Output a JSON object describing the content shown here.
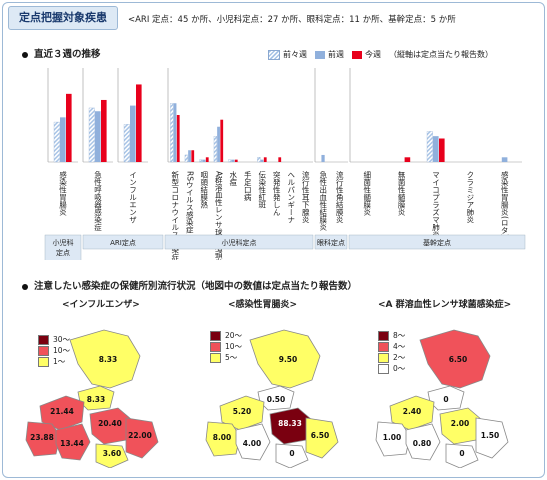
{
  "header": {
    "title": "定点把握対象疾患",
    "subhead": "<ARI 定点：45 か所、小児科定点：27 か所、眼科定点：11 か所、基幹定点：5 か所"
  },
  "bar_section": {
    "title": "直近３週の推移",
    "legend_note": "（縦軸は定点当たり報告数）"
  },
  "map_section": {
    "title": "注意したい感染症の保健所別流行状況（地図中の数値は定点当たり報告数）"
  },
  "colors": {
    "week_before_last": "#a8c4e6",
    "last_week": "#90b0dc",
    "this_week": "#e8001c",
    "level_high": "#7a0010",
    "level_mid": "#f0525a",
    "level_low": "#ffff66",
    "level_zero": "#ffffff"
  },
  "chart_data": {
    "type": "bar",
    "series": [
      {
        "name": "前々週",
        "values": [
          8.5,
          11.5,
          8.0,
          2.5,
          0.3,
          0.1,
          1.1,
          0.1,
          0.0,
          0.2,
          0.0,
          0.0,
          0.0,
          0.0,
          0.0,
          0.0,
          0.0,
          1.3,
          0.0,
          0.0
        ]
      },
      {
        "name": "前週",
        "values": [
          9.5,
          10.8,
          12.0,
          2.5,
          0.5,
          0.1,
          1.5,
          0.1,
          0.0,
          0.1,
          0.0,
          0.0,
          0.0,
          0.3,
          0.0,
          0.0,
          0.0,
          1.1,
          0.0,
          0.2
        ]
      },
      {
        "name": "今週",
        "values": [
          14.5,
          13.2,
          16.5,
          2.0,
          0.5,
          0.2,
          1.8,
          0.1,
          0.0,
          0.2,
          0.2,
          0.0,
          0.0,
          0.0,
          0.0,
          0.0,
          0.2,
          1.0,
          0.0,
          0.0
        ]
      }
    ],
    "categories": [
      "感染性胃腸炎",
      "急性呼吸器感染症",
      "インフルエンザ",
      "新型コロナウイルス感染症",
      "RSウイルス感染症",
      "咽頭結膜熱",
      "A群溶血性レンサ球菌咽頭炎",
      "水痘",
      "手足口病",
      "伝染性紅斑",
      "突発性発しん",
      "ヘルパンギーナ",
      "流行性耳下腺炎",
      "急性出血性結膜炎",
      "流行性角結膜炎",
      "細菌性髄膜炎",
      "無菌性髄膜炎",
      "マイコプラズマ肺炎",
      "クラミジア肺炎",
      "感染性胃腸炎(ロタ)"
    ],
    "panels": [
      {
        "group": "小児科定点",
        "start": 0,
        "count": 1,
        "ylim": [
          0,
          20
        ]
      },
      {
        "group": "ARI定点",
        "start": 1,
        "count": 1,
        "ylim": [
          0,
          20
        ]
      },
      {
        "group": "ARI定点",
        "start": 2,
        "count": 1,
        "ylim": [
          0,
          20
        ]
      },
      {
        "group": "小児科定点",
        "start": 3,
        "count": 10,
        "ylim": [
          0,
          4
        ]
      },
      {
        "group": "眼科定点",
        "start": 13,
        "count": 2,
        "ylim": [
          0,
          4
        ]
      },
      {
        "group": "基幹定点",
        "start": 15,
        "count": 5,
        "ylim": [
          0,
          4
        ]
      }
    ],
    "group_labels": [
      {
        "label": "小児科\n定点"
      },
      {
        "label": "ARI定点"
      },
      {
        "label": "小児科定点"
      },
      {
        "label": "眼科定点"
      },
      {
        "label": "基幹定点"
      }
    ],
    "legend": [
      "前々週",
      "前週",
      "今週"
    ],
    "grid": false
  },
  "maps": [
    {
      "title": "<インフルエンザ>",
      "legend": [
        {
          "label": "30～",
          "level": "high"
        },
        {
          "label": "10～",
          "level": "mid"
        },
        {
          "label": "1～",
          "level": "low"
        }
      ],
      "regions": [
        {
          "value": "8.33",
          "level": "low"
        },
        {
          "value": "8.33",
          "level": "low"
        },
        {
          "value": "21.44",
          "level": "mid"
        },
        {
          "value": "23.88",
          "level": "mid"
        },
        {
          "value": "13.44",
          "level": "mid"
        },
        {
          "value": "20.40",
          "level": "mid"
        },
        {
          "value": "22.00",
          "level": "mid"
        },
        {
          "value": "3.60",
          "level": "low"
        }
      ]
    },
    {
      "title": "<感染性胃腸炎>",
      "legend": [
        {
          "label": "20～",
          "level": "high"
        },
        {
          "label": "10～",
          "level": "mid"
        },
        {
          "label": "5～",
          "level": "low"
        }
      ],
      "regions": [
        {
          "value": "9.50",
          "level": "low"
        },
        {
          "value": "0.50",
          "level": "zero"
        },
        {
          "value": "5.20",
          "level": "low"
        },
        {
          "value": "8.00",
          "level": "low"
        },
        {
          "value": "4.00",
          "level": "zero"
        },
        {
          "value": "88.33",
          "level": "high"
        },
        {
          "value": "6.50",
          "level": "low"
        },
        {
          "value": "0",
          "level": "zero"
        }
      ]
    },
    {
      "title": "<A 群溶血性レンサ球菌感染症>",
      "legend": [
        {
          "label": "8～",
          "level": "high"
        },
        {
          "label": "4～",
          "level": "mid"
        },
        {
          "label": "2～",
          "level": "low"
        },
        {
          "label": "0～",
          "level": "zero"
        }
      ],
      "regions": [
        {
          "value": "6.50",
          "level": "mid"
        },
        {
          "value": "0",
          "level": "zero"
        },
        {
          "value": "2.40",
          "level": "low"
        },
        {
          "value": "1.00",
          "level": "zero"
        },
        {
          "value": "0.80",
          "level": "zero"
        },
        {
          "value": "2.00",
          "level": "low"
        },
        {
          "value": "1.50",
          "level": "zero"
        },
        {
          "value": "0",
          "level": "zero"
        }
      ]
    }
  ]
}
